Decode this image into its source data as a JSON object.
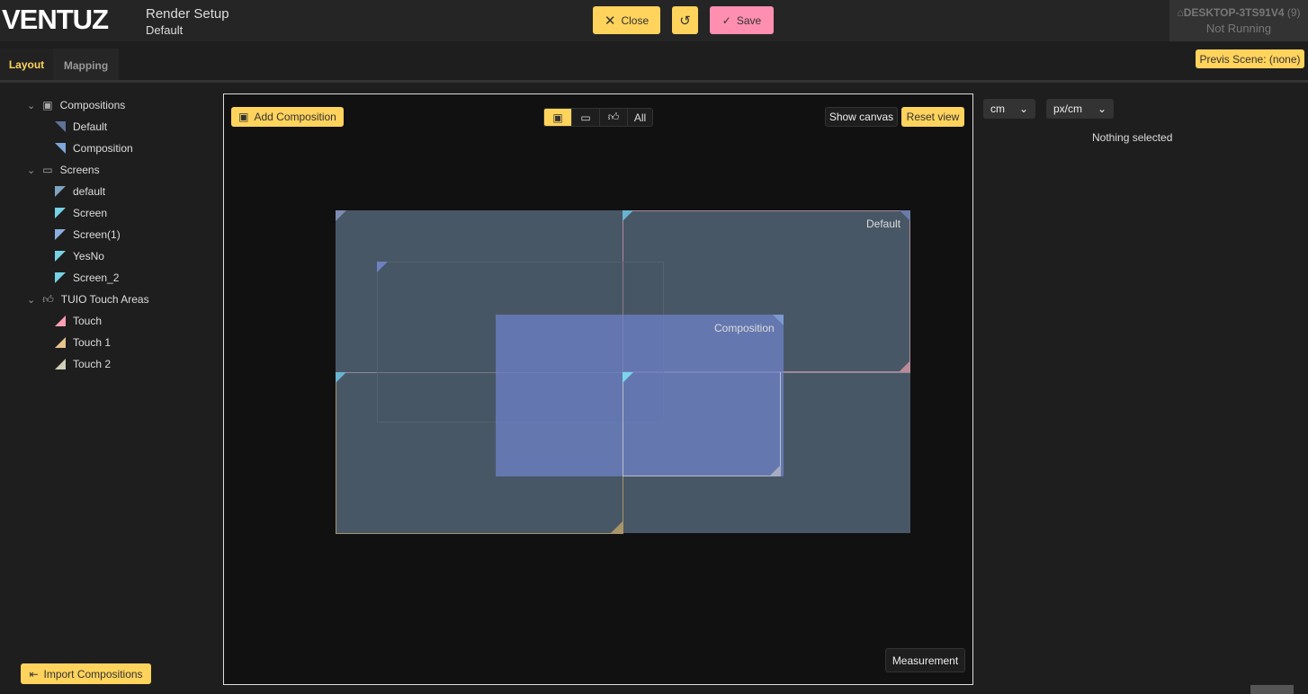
{
  "app": {
    "logo": "VENTUZ",
    "title": "Render Setup",
    "subtitle": "Default"
  },
  "toolbar": {
    "close": "Close",
    "save": "Save",
    "reset_icon": "undo-icon"
  },
  "machine": {
    "name": "DESKTOP-3TS91V4",
    "count": "(9)",
    "status": "Not Running"
  },
  "previs": "Previs Scene: (none)",
  "tabs": [
    "Layout",
    "Mapping"
  ],
  "tree": {
    "compositions": {
      "label": "Compositions",
      "items": [
        {
          "label": "Default",
          "color": "#5f7397"
        },
        {
          "label": "Composition",
          "color": "#7ea6d8"
        }
      ]
    },
    "screens": {
      "label": "Screens",
      "items": [
        {
          "label": "default",
          "color": "#7fa4c0"
        },
        {
          "label": "Screen",
          "color": "#76d2e4"
        },
        {
          "label": "Screen(1)",
          "color": "#8aaee0"
        },
        {
          "label": "YesNo",
          "color": "#76d2e4"
        },
        {
          "label": "Screen_2",
          "color": "#76d2e4"
        }
      ]
    },
    "touch": {
      "label": "TUIO Touch Areas",
      "items": [
        {
          "label": "Touch",
          "color": "#ff9fb3"
        },
        {
          "label": "Touch 1",
          "color": "#e8c48c"
        },
        {
          "label": "Touch 2",
          "color": "#cfcfb8"
        }
      ]
    }
  },
  "import": "Import Compositions",
  "canvas": {
    "add": "Add Composition",
    "filter_all": "All",
    "show_canvas": "Show canvas",
    "reset_view": "Reset view",
    "measurement": "Measurement",
    "default_label": "Default",
    "composition_label": "Composition"
  },
  "props": {
    "unit": "cm",
    "density": "px/cm",
    "empty": "Nothing selected"
  }
}
